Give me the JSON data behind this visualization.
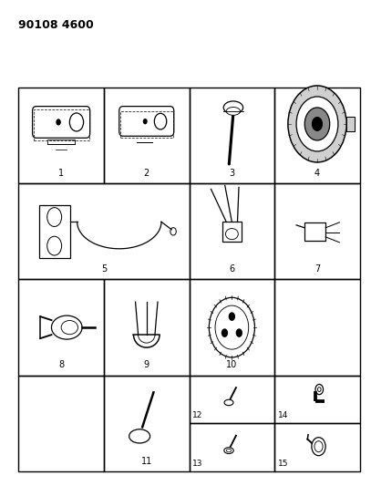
{
  "title": "90108 4600",
  "bg_color": "#ffffff",
  "line_color": "#000000",
  "figure_width": 4.07,
  "figure_height": 5.33,
  "dpi": 100,
  "GL": 0.05,
  "GR": 0.97,
  "GT": 0.82,
  "GB": 0.03
}
